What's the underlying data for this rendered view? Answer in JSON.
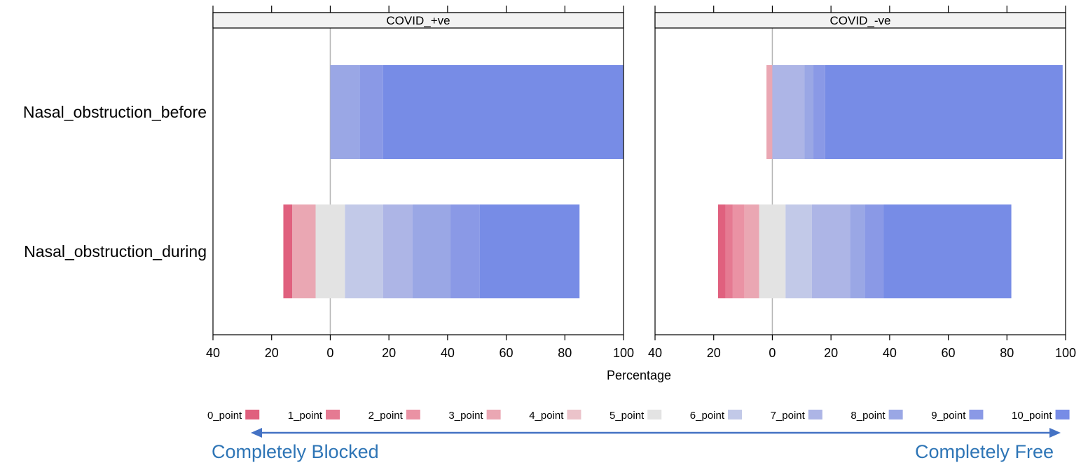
{
  "chart_data": {
    "type": "bar",
    "orientation": "horizontal",
    "stacked": "diverging",
    "xlabel": "Percentage",
    "xlim": [
      -40,
      100
    ],
    "x_ticks": [
      -40,
      -20,
      0,
      20,
      40,
      60,
      80,
      100
    ],
    "x_tick_labels": [
      "40",
      "20",
      "0",
      "20",
      "40",
      "60",
      "80",
      "100"
    ],
    "categories": [
      "Nasal_obstruction_before",
      "Nasal_obstruction_during"
    ],
    "legend_position": "bottom",
    "series": [
      {
        "name": "0_point",
        "color": "#e0607e"
      },
      {
        "name": "1_point",
        "color": "#e57a92"
      },
      {
        "name": "2_point",
        "color": "#ea92a4"
      },
      {
        "name": "3_point",
        "color": "#eaa7b3"
      },
      {
        "name": "4_point",
        "color": "#ebc3ca"
      },
      {
        "name": "5_point",
        "color": "#e3e3e3"
      },
      {
        "name": "6_point",
        "color": "#c2c9e8"
      },
      {
        "name": "7_point",
        "color": "#adb5e6"
      },
      {
        "name": "8_point",
        "color": "#9aa7e5"
      },
      {
        "name": "9_point",
        "color": "#8a99e6"
      },
      {
        "name": "10_point",
        "color": "#778ce6"
      }
    ],
    "panels": [
      {
        "title": "COVID_+ve",
        "rows": [
          {
            "category": "Nasal_obstruction_before",
            "values": [
              0,
              0,
              0,
              0,
              0,
              0,
              0,
              0,
              10,
              8,
              82
            ]
          },
          {
            "category": "Nasal_obstruction_during",
            "values": [
              3,
              0,
              0,
              8,
              0,
              10,
              13,
              10,
              13,
              10,
              34
            ]
          }
        ]
      },
      {
        "title": "COVID_-ve",
        "rows": [
          {
            "category": "Nasal_obstruction_before",
            "values": [
              0,
              0,
              0,
              2,
              0,
              0,
              0,
              11,
              3,
              4,
              81
            ]
          },
          {
            "category": "Nasal_obstruction_during",
            "values": [
              2.5,
              2.5,
              4,
              5,
              0,
              9,
              9,
              13,
              5,
              6.5,
              43.5
            ]
          }
        ]
      }
    ]
  },
  "scale_notes": {
    "left": "Completely Blocked",
    "right": "Completely Free"
  }
}
